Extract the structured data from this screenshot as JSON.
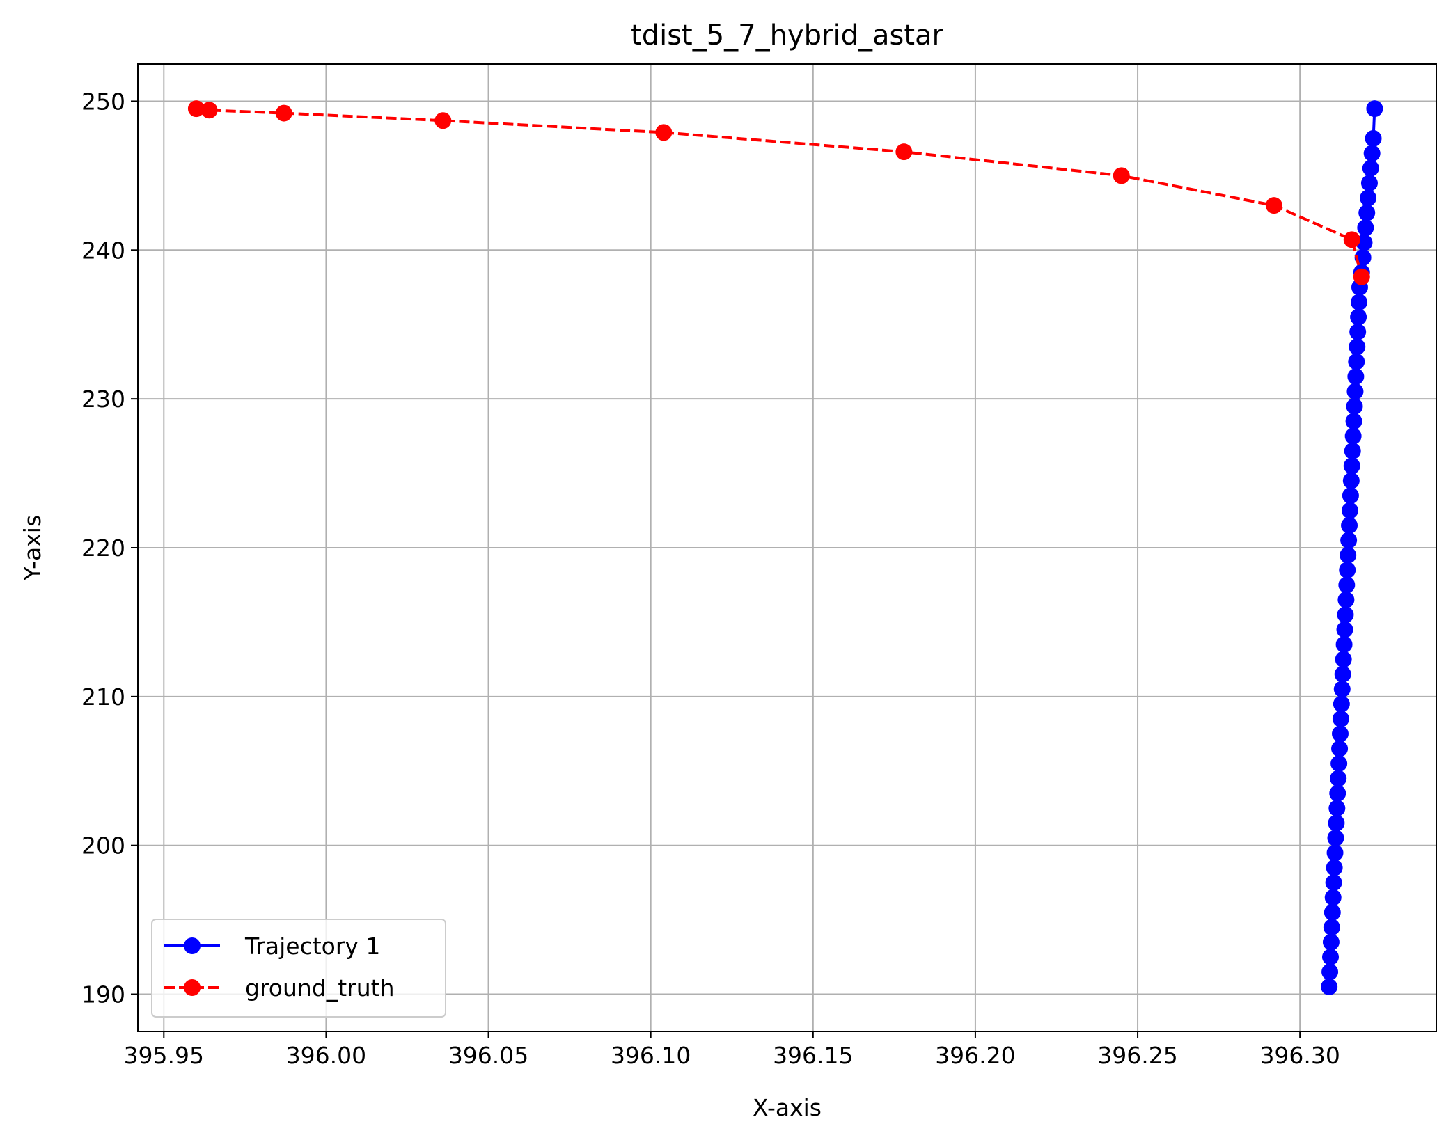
{
  "chart_data": {
    "type": "line",
    "title": "tdist_5_7_hybrid_astar",
    "xlabel": "X-axis",
    "ylabel": "Y-axis",
    "xlim": [
      395.942,
      396.342
    ],
    "ylim": [
      187.5,
      252.5
    ],
    "xticks": [
      395.95,
      396.0,
      396.05,
      396.1,
      396.15,
      396.2,
      396.25,
      396.3
    ],
    "xtick_labels": [
      "395.95",
      "396.00",
      "396.05",
      "396.10",
      "396.15",
      "396.20",
      "396.25",
      "396.30"
    ],
    "yticks": [
      190,
      200,
      210,
      220,
      230,
      240,
      250
    ],
    "ytick_labels": [
      "190",
      "200",
      "210",
      "220",
      "230",
      "240",
      "250"
    ],
    "grid": true,
    "legend": "lower-left",
    "series": [
      {
        "name": "Trajectory 1",
        "color": "#0000ff",
        "linestyle": "solid",
        "marker": "circle",
        "x": [
          396.309,
          396.3092,
          396.3094,
          396.3096,
          396.3098,
          396.31,
          396.3102,
          396.3104,
          396.3106,
          396.3108,
          396.311,
          396.3112,
          396.3114,
          396.3116,
          396.3118,
          396.312,
          396.3122,
          396.3124,
          396.3126,
          396.3128,
          396.313,
          396.3132,
          396.3134,
          396.3136,
          396.3138,
          396.314,
          396.3142,
          396.3144,
          396.3146,
          396.3148,
          396.315,
          396.3152,
          396.3154,
          396.3156,
          396.3158,
          396.316,
          396.3162,
          396.3164,
          396.3166,
          396.3168,
          396.317,
          396.3172,
          396.3174,
          396.3176,
          396.3178,
          396.318,
          396.3182,
          396.3184,
          396.319,
          396.3194,
          396.3198,
          396.3202,
          396.3206,
          396.321,
          396.3214,
          396.3218,
          396.3222,
          396.3226,
          396.323
        ],
        "y": [
          190.5,
          191.5,
          192.5,
          193.5,
          194.5,
          195.5,
          196.5,
          197.5,
          198.5,
          199.5,
          200.5,
          201.5,
          202.5,
          203.5,
          204.5,
          205.5,
          206.5,
          207.5,
          208.5,
          209.5,
          210.5,
          211.5,
          212.5,
          213.5,
          214.5,
          215.5,
          216.5,
          217.5,
          218.5,
          219.5,
          220.5,
          221.5,
          222.5,
          223.5,
          224.5,
          225.5,
          226.5,
          227.5,
          228.5,
          229.5,
          230.5,
          231.5,
          232.5,
          233.5,
          234.5,
          235.5,
          236.5,
          237.5,
          238.5,
          239.5,
          240.5,
          241.5,
          242.5,
          243.5,
          244.5,
          245.5,
          246.5,
          247.5,
          249.5
        ]
      },
      {
        "name": "ground_truth",
        "color": "#ff0000",
        "linestyle": "dashed",
        "marker": "circle",
        "x": [
          395.96,
          395.964,
          395.987,
          396.036,
          396.104,
          396.178,
          396.245,
          396.292,
          396.316,
          396.319
        ],
        "y": [
          249.5,
          249.4,
          249.2,
          248.7,
          247.9,
          246.6,
          245.0,
          243.0,
          240.7,
          238.2
        ]
      }
    ]
  }
}
